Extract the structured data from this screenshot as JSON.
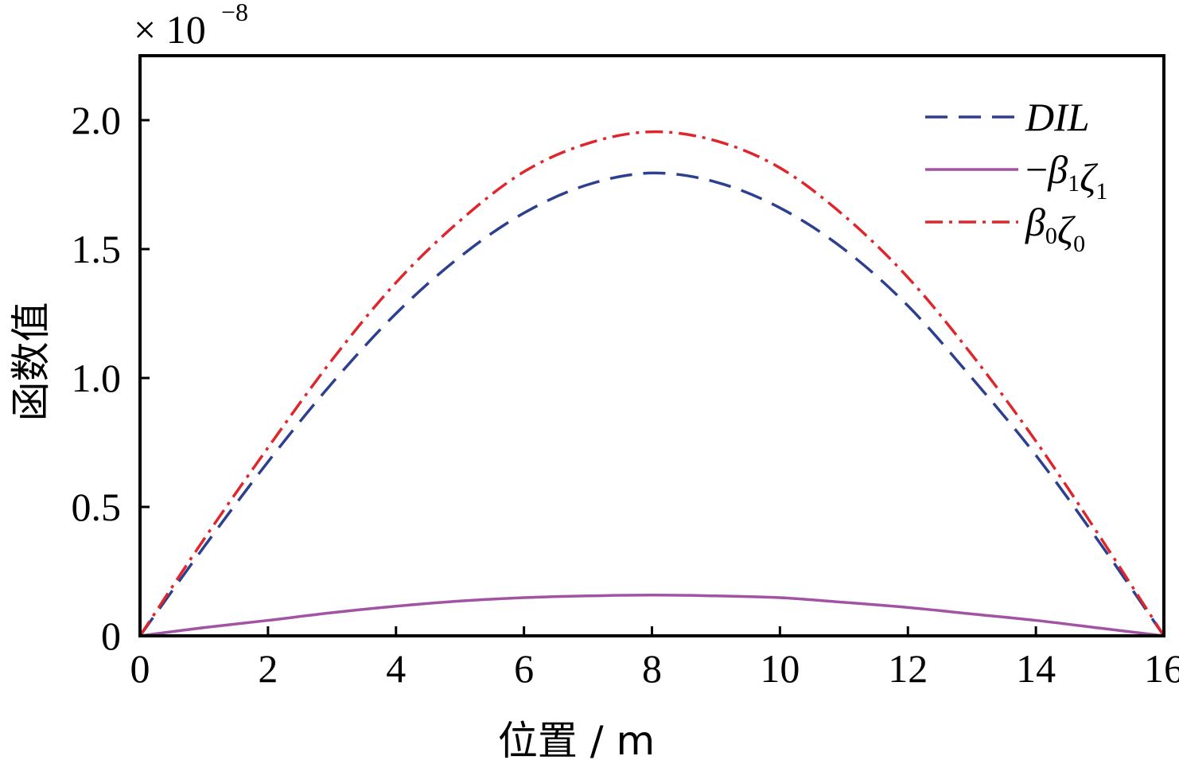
{
  "chart_data": {
    "type": "line",
    "xlabel": "位置 / m",
    "ylabel": "函数值",
    "y_multiplier": {
      "base": "× 10",
      "exponent": "−8"
    },
    "xlim": [
      0,
      16
    ],
    "ylim": [
      0,
      2.25
    ],
    "x_ticks": [
      0,
      2,
      4,
      6,
      8,
      10,
      12,
      14,
      16
    ],
    "x_tick_labels": [
      "0",
      "2",
      "4",
      "6",
      "8",
      "10",
      "12",
      "14",
      "16"
    ],
    "y_ticks": [
      0,
      0.5,
      1.0,
      1.5,
      2.0
    ],
    "y_tick_labels": [
      "0",
      "0.5",
      "1.0",
      "1.5",
      "2.0"
    ],
    "grid": false,
    "legend_position": "top-right",
    "x": [
      0,
      1,
      2,
      3,
      4,
      5,
      6,
      7,
      8,
      9,
      10,
      11,
      12,
      13,
      14,
      15,
      16
    ],
    "series": [
      {
        "name": "DIL",
        "legend": {
          "prefix": "",
          "parts": [
            {
              "main": "DIL",
              "sub": ""
            }
          ]
        },
        "color": "#2d3f8f",
        "dash": "dashed",
        "values": [
          0,
          0.345,
          0.675,
          0.98,
          1.25,
          1.47,
          1.64,
          1.75,
          1.795,
          1.76,
          1.66,
          1.5,
          1.28,
          1.0,
          0.7,
          0.36,
          0
        ]
      },
      {
        "name": "−β1ζ1",
        "legend": {
          "prefix": "−",
          "parts": [
            {
              "main": "β",
              "sub": "1"
            },
            {
              "main": "ζ",
              "sub": "1"
            }
          ]
        },
        "color": "#a353a3",
        "dash": "solid",
        "values": [
          0,
          0.032,
          0.06,
          0.09,
          0.115,
          0.135,
          0.148,
          0.155,
          0.158,
          0.155,
          0.148,
          0.13,
          0.11,
          0.085,
          0.06,
          0.03,
          0
        ]
      },
      {
        "name": "β0ζ0",
        "legend": {
          "prefix": "",
          "parts": [
            {
              "main": "β",
              "sub": "0"
            },
            {
              "main": "ζ",
              "sub": "0"
            }
          ]
        },
        "color": "#e0262d",
        "dash": "dashdot",
        "values": [
          0,
          0.375,
          0.73,
          1.07,
          1.37,
          1.61,
          1.8,
          1.91,
          1.955,
          1.92,
          1.815,
          1.63,
          1.39,
          1.09,
          0.755,
          0.385,
          0
        ]
      }
    ]
  }
}
